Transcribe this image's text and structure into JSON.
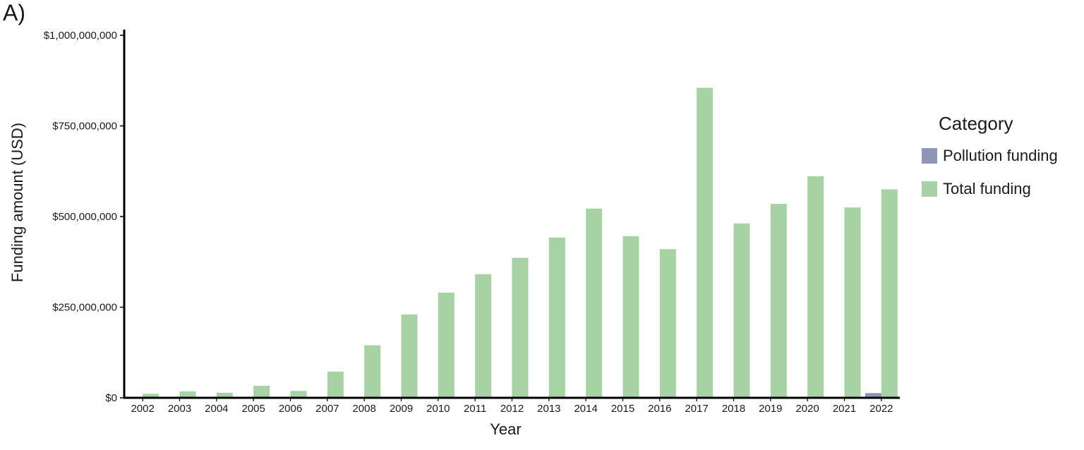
{
  "panel_label": "A)",
  "legend": {
    "title": "Category",
    "items": [
      {
        "label": "Pollution funding",
        "color": "#8e96b8"
      },
      {
        "label": "Total funding",
        "color": "#a6d2a4"
      }
    ]
  },
  "chart_data": {
    "type": "bar",
    "xlabel": "Year",
    "ylabel": "Funding amount (USD)",
    "ylim": [
      0,
      1000000000
    ],
    "yticks": [
      0,
      250000000,
      500000000,
      750000000,
      1000000000
    ],
    "ytick_labels": [
      "$0",
      "$250,000,000",
      "$500,000,000",
      "$750,000,000",
      "$1,000,000,000"
    ],
    "categories": [
      "2002",
      "2003",
      "2004",
      "2005",
      "2006",
      "2007",
      "2008",
      "2009",
      "2010",
      "2011",
      "2012",
      "2013",
      "2014",
      "2015",
      "2016",
      "2017",
      "2018",
      "2019",
      "2020",
      "2021",
      "2022"
    ],
    "series": [
      {
        "name": "Pollution funding",
        "color": "#8e96b8",
        "values": [
          0,
          0,
          0,
          0,
          0,
          0,
          0,
          0,
          0,
          0,
          0,
          0,
          0,
          0,
          0,
          0,
          0,
          0,
          0,
          0,
          13000000
        ]
      },
      {
        "name": "Total funding",
        "color": "#a6d2a4",
        "values": [
          11000000,
          18000000,
          14000000,
          33000000,
          19000000,
          72000000,
          145000000,
          230000000,
          290000000,
          341000000,
          386000000,
          442000000,
          522000000,
          446000000,
          410000000,
          855000000,
          481000000,
          535000000,
          611000000,
          525000000,
          575000000
        ]
      }
    ],
    "grid": false,
    "legend_position": "right"
  }
}
